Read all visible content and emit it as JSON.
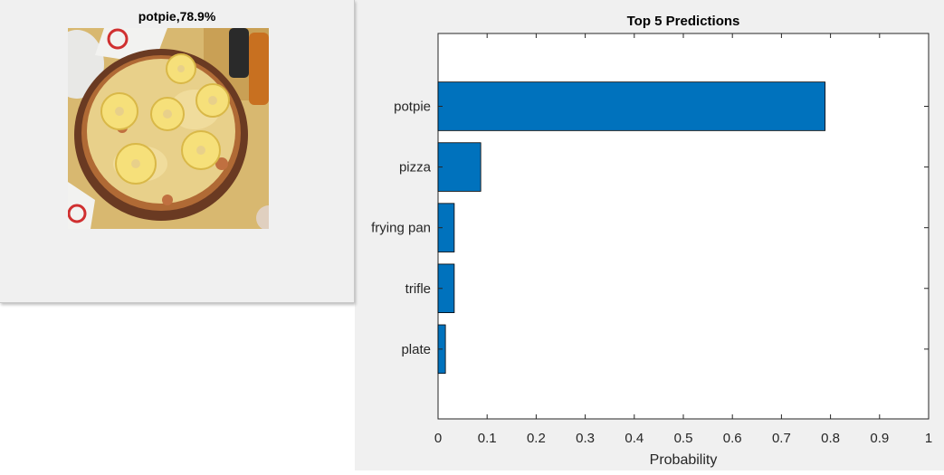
{
  "image_figure": {
    "title": "potpie,78.9%"
  },
  "chart_figure": {
    "title": "Top 5 Predictions"
  },
  "colors": {
    "bar": "#0072bd",
    "window_bg": "#f0f0f0",
    "axes_bg": "#ffffff"
  },
  "chart_data": {
    "type": "bar",
    "orientation": "horizontal",
    "title": "Top 5 Predictions",
    "xlabel": "Probability",
    "ylabel": "",
    "categories": [
      "potpie",
      "pizza",
      "frying pan",
      "trifle",
      "plate"
    ],
    "values": [
      0.789,
      0.087,
      0.033,
      0.033,
      0.015
    ],
    "xlim": [
      0,
      1
    ],
    "xticks": [
      "0",
      "0.1",
      "0.2",
      "0.3",
      "0.4",
      "0.5",
      "0.6",
      "0.7",
      "0.8",
      "0.9",
      "1"
    ],
    "grid": false,
    "legend": "none"
  }
}
